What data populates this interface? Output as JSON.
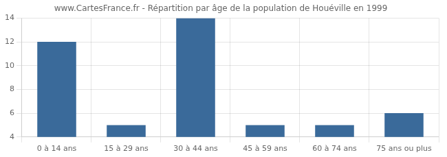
{
  "chart_data": {
    "type": "bar",
    "title": "www.CartesFrance.fr - Répartition par âge de la population de Houéville en 1999",
    "categories": [
      "0 à 14 ans",
      "15 à 29 ans",
      "30 à 44 ans",
      "45 à 59 ans",
      "60 à 74 ans",
      "75 ans ou plus"
    ],
    "values": [
      12,
      5,
      14,
      5,
      5,
      6
    ],
    "color": "#3a6a9a",
    "ylim": [
      4,
      14
    ],
    "yticks": [
      4,
      6,
      8,
      10,
      12,
      14
    ],
    "grid": true
  }
}
